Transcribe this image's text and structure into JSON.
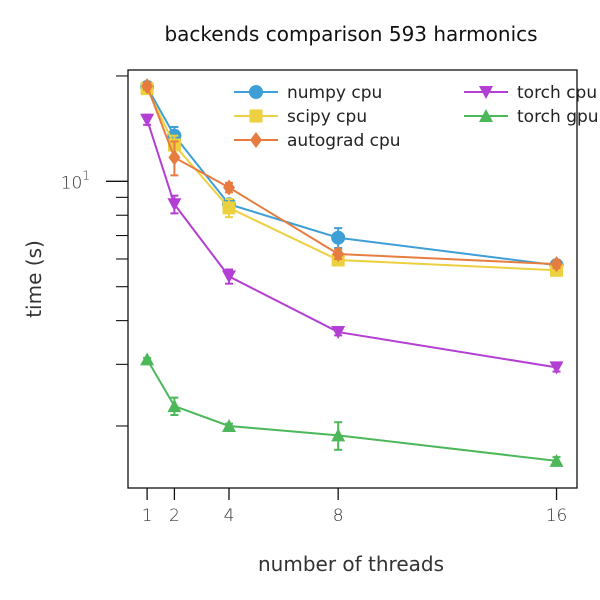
{
  "chart_data": {
    "type": "line",
    "title": "backends comparison 593 harmonics",
    "xlabel": "number of threads",
    "ylabel": "time (s)",
    "yscale": "log",
    "xlim": [
      0.3,
      16.75
    ],
    "ylim": [
      1.33,
      20.8
    ],
    "x": [
      1,
      2,
      4,
      8,
      16
    ],
    "xtick_labels": [
      "1",
      "2",
      "4",
      "8",
      "16"
    ],
    "ytick_major": [
      {
        "value": 10,
        "label_base": "10",
        "label_exp": "1"
      }
    ],
    "ytick_minor": [
      2,
      3,
      4,
      5,
      6,
      7,
      8,
      9,
      20
    ],
    "legend_placement": "top-right",
    "series": [
      {
        "name": "numpy cpu",
        "color": "#3d9fd6",
        "marker": "circle",
        "values": [
          18.6,
          13.5,
          8.6,
          6.9,
          5.76
        ],
        "err": [
          0.4,
          0.8,
          0.3,
          0.45,
          0.15
        ]
      },
      {
        "name": "scipy cpu",
        "color": "#ecd03f",
        "marker": "square",
        "values": [
          18.4,
          12.7,
          8.4,
          5.96,
          5.57
        ],
        "err": [
          0.4,
          0.8,
          0.5,
          0.15,
          0.15
        ]
      },
      {
        "name": "autograd cpu",
        "color": "#e67c3f",
        "marker": "diamond",
        "values": [
          18.7,
          11.7,
          9.6,
          6.2,
          5.8
        ],
        "err": [
          0.4,
          1.3,
          0.3,
          0.2,
          0.15
        ]
      },
      {
        "name": "torch cpu",
        "color": "#b33fd3",
        "marker": "triangle-down",
        "values": [
          15.0,
          8.6,
          5.35,
          3.71,
          2.94
        ],
        "err": [
          0.5,
          0.5,
          0.25,
          0.08,
          0.08
        ]
      },
      {
        "name": "torch gpu",
        "color": "#4cb85a",
        "marker": "triangle-up",
        "values": [
          3.1,
          2.28,
          2.0,
          1.88,
          1.59
        ],
        "err": [
          0.03,
          0.13,
          0.03,
          0.17,
          0.04
        ]
      }
    ]
  }
}
